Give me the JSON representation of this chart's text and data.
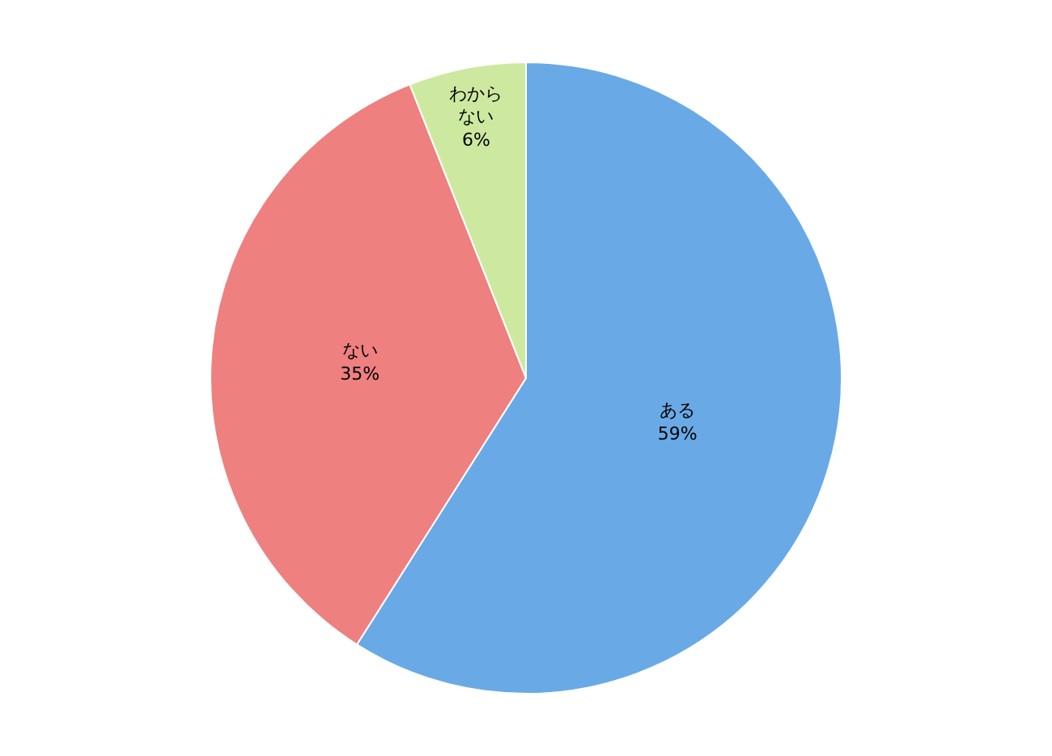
{
  "chart_data": {
    "type": "pie",
    "categories": [
      "ある",
      "ない",
      "わからない"
    ],
    "values": [
      59,
      35,
      6
    ],
    "colors": [
      "#69aae6",
      "#ee8080",
      "#cde9a0"
    ],
    "value_labels": [
      "59%",
      "35%",
      "6%"
    ],
    "legend": false
  }
}
